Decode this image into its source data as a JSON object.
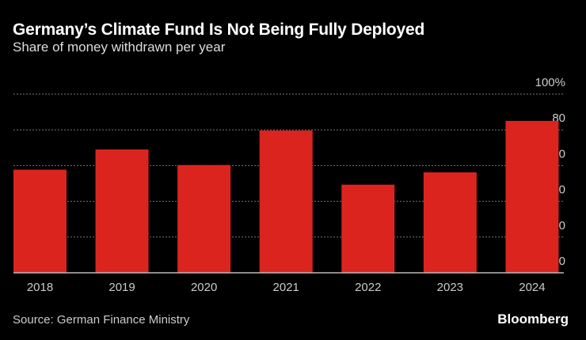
{
  "title": "Germany’s Climate Fund Is Not Being Fully Deployed",
  "subtitle": "Share of money withdrawn per year",
  "source": "Source: German Finance Ministry",
  "logo": "Bloomberg",
  "chart_data": {
    "type": "bar",
    "categories": [
      "2018",
      "2019",
      "2020",
      "2021",
      "2022",
      "2023",
      "2024"
    ],
    "values": [
      57.7,
      69,
      60.3,
      79.6,
      49.3,
      56.2,
      85
    ],
    "ylim": [
      0,
      100
    ],
    "yticks": [
      0,
      20,
      40,
      60,
      80,
      100
    ],
    "ytick_labels": [
      "0",
      "20",
      "40",
      "60",
      "80",
      "100%"
    ],
    "y_axis_position": "right",
    "grid": true,
    "bar_color": "#dc241f",
    "background": "#000000"
  }
}
